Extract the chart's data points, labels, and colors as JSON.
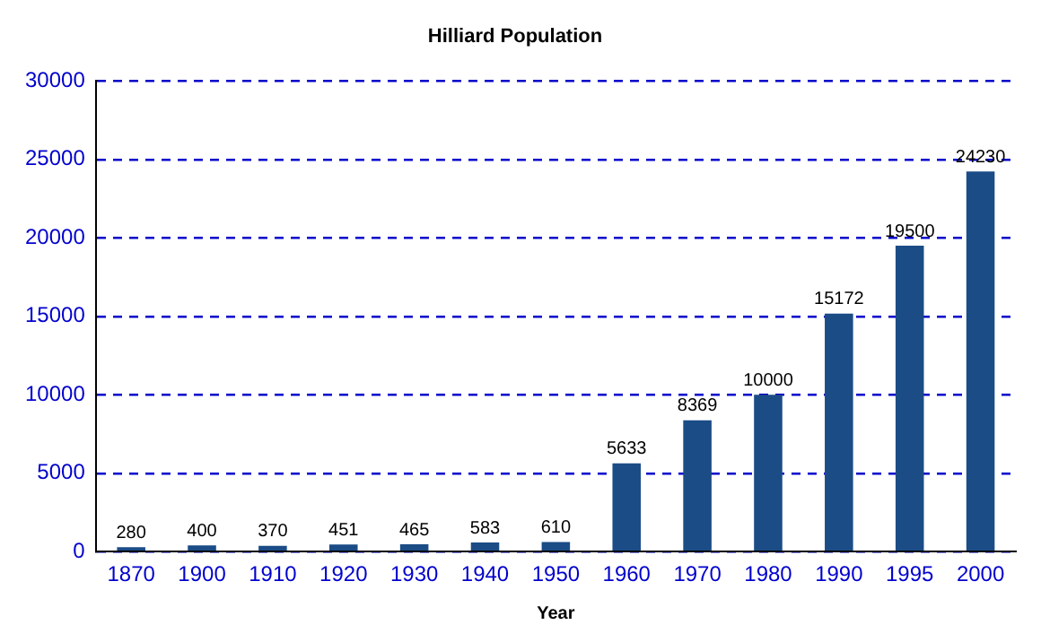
{
  "chart_data": {
    "type": "bar",
    "title": "Hilliard Population",
    "xlabel": "Year",
    "categories": [
      "1870",
      "1900",
      "1910",
      "1920",
      "1930",
      "1940",
      "1950",
      "1960",
      "1970",
      "1980",
      "1990",
      "1995",
      "2000"
    ],
    "values": [
      280,
      400,
      370,
      451,
      465,
      583,
      610,
      5633,
      8369,
      10000,
      15172,
      19500,
      24230
    ],
    "color": "#1b4c86",
    "ylim": [
      0,
      30000
    ],
    "yticks": [
      0,
      5000,
      10000,
      15000,
      20000,
      25000,
      30000
    ],
    "grid": "y",
    "data_labels": true,
    "legend": false
  }
}
